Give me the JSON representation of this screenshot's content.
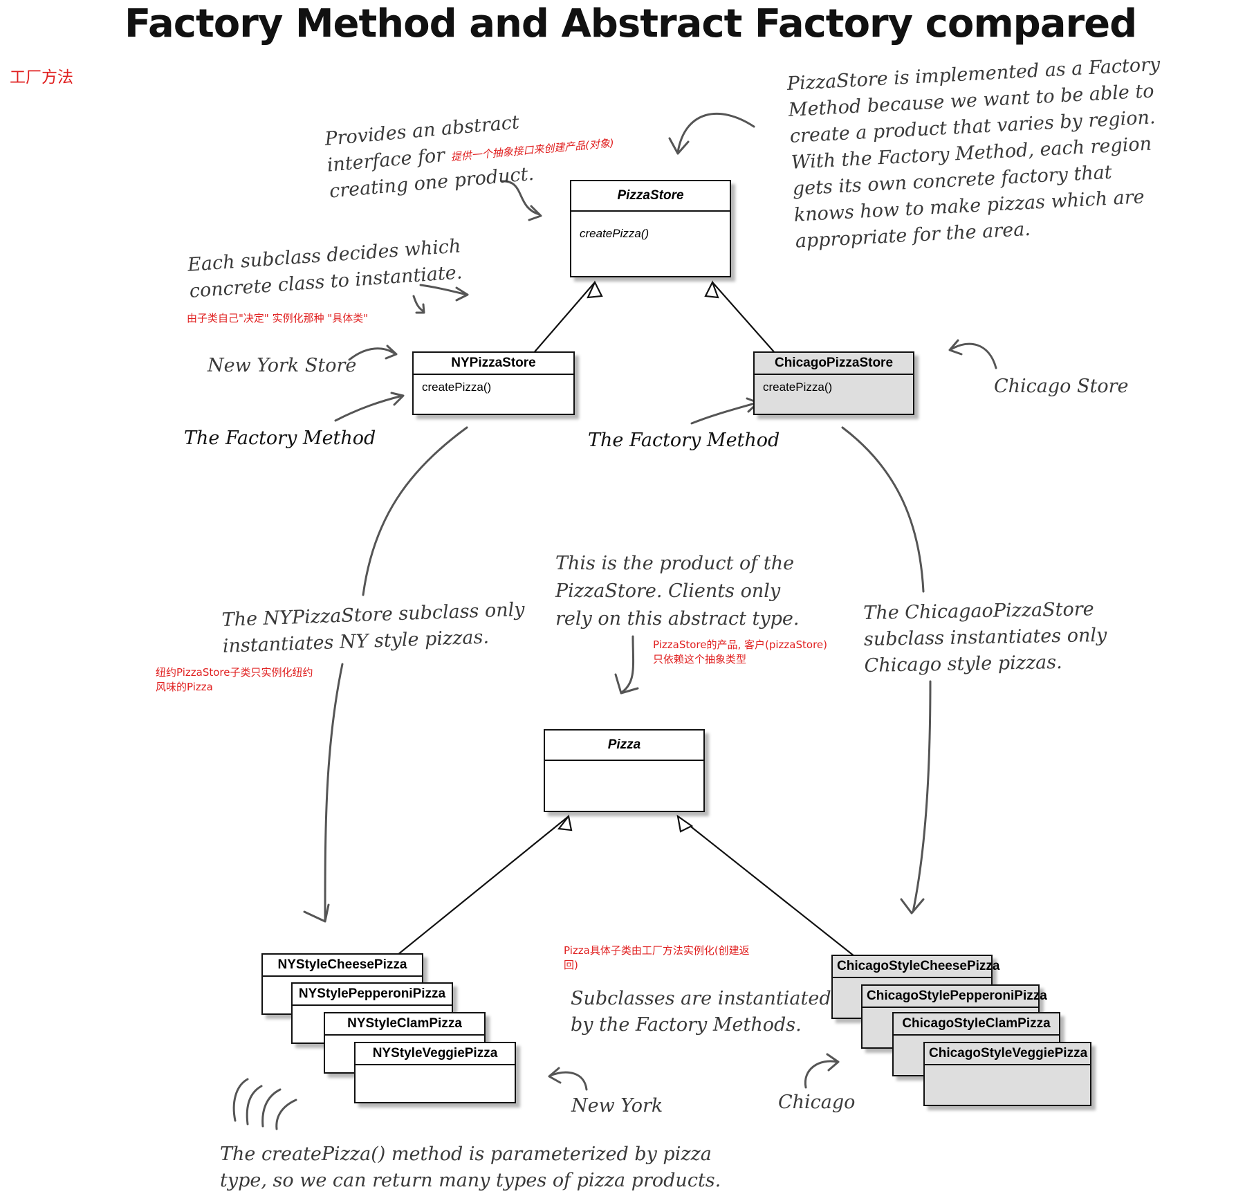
{
  "title": "Factory Method and Abstract Factory compared",
  "section_label": "工厂方法",
  "classes": {
    "pizza_store": {
      "name": "PizzaStore",
      "method": "createPizza()"
    },
    "ny_pizza_store": {
      "name": "NYPizzaStore",
      "method": "createPizza()"
    },
    "chicago_pizza_store": {
      "name": "ChicagoPizzaStore",
      "method": "createPizza()"
    },
    "pizza": {
      "name": "Pizza"
    },
    "ny_pizzas": [
      "NYStyleCheesePizza",
      "NYStylePepperoniPizza",
      "NYStyleClamPizza",
      "NYStyleVeggiePizza"
    ],
    "chicago_pizzas": [
      "ChicagoStyleCheesePizza",
      "ChicagoStylePepperoniPizza",
      "ChicagoStyleClamPizza",
      "ChicagoStyleVeggiePizza"
    ]
  },
  "notes": {
    "provides_interface": [
      "Provides an abstract",
      "interface for",
      "creating one product."
    ],
    "provides_interface_cn": "提供一个抽象接口来创建产品(对象)",
    "pizzastore_impl": [
      "PizzaStore is implemented as a Factory",
      "Method because we want to be able to",
      "create a product that varies by region.",
      "With the Factory Method, each region",
      "gets its own concrete factory that",
      "knows how to make pizzas which are",
      "appropriate for the area."
    ],
    "each_subclass": [
      "Each subclass decides which",
      "concrete class to instantiate."
    ],
    "each_subclass_cn": "由子类自己\"决定\" 实例化那种 \"具体类\"",
    "new_york_store": "New York Store",
    "chicago_store": "Chicago Store",
    "factory_method_left": "The Factory Method",
    "factory_method_right": "The Factory Method",
    "product_note": [
      "This is the product of the",
      "PizzaStore.  Clients only",
      "rely on this abstract type."
    ],
    "product_note_cn": [
      "PizzaStore的产品, 客户(pizzaStore)",
      "只依赖这个抽象类型"
    ],
    "ny_subclass": [
      "The NYPizzaStore subclass only",
      "instantiates NY style pizzas."
    ],
    "ny_subclass_cn": [
      "纽约PizzaStore子类只实例化纽约",
      "风味的Pizza"
    ],
    "chicago_subclass": [
      "The ChicagaoPizzaStore",
      "subclass instantiates only",
      "Chicago style pizzas."
    ],
    "pizza_concrete_cn": [
      "Pizza具体子类由工厂方法实例化(创建返",
      "回)"
    ],
    "subclasses_instantiated": [
      "Subclasses are instantiated",
      "by the Factory Methods."
    ],
    "new_york": "New York",
    "chicago": "Chicago",
    "parameterized": [
      "The createPizza() method is parameterized by pizza",
      "type, so we can return many types of pizza products."
    ]
  }
}
